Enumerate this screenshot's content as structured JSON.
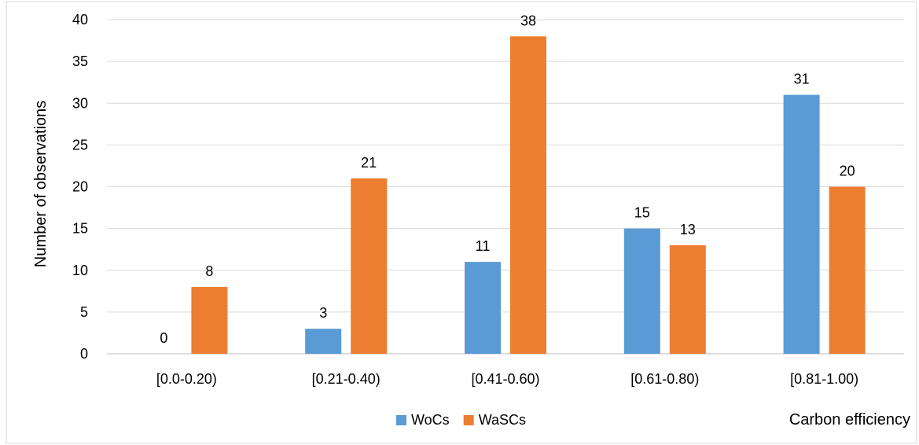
{
  "chart_data": {
    "type": "bar",
    "categories": [
      "[0.0-0.20)",
      "[0.21-0.40)",
      "[0.41-0.60)",
      "[0.61-0.80)",
      "[0.81-1.00)"
    ],
    "series": [
      {
        "name": "WoCs",
        "color": "#5B9BD5",
        "values": [
          0,
          3,
          11,
          15,
          31
        ]
      },
      {
        "name": "WaSCs",
        "color": "#ED7D31",
        "values": [
          8,
          21,
          38,
          13,
          20
        ]
      }
    ],
    "ylabel": "Number of observations",
    "xlabel": "Carbon efficiency",
    "ylim": [
      0,
      40
    ],
    "yticks": [
      0,
      5,
      10,
      15,
      20,
      25,
      30,
      35,
      40
    ],
    "grid": true,
    "legend": "bottom-center",
    "data_labels": true
  }
}
